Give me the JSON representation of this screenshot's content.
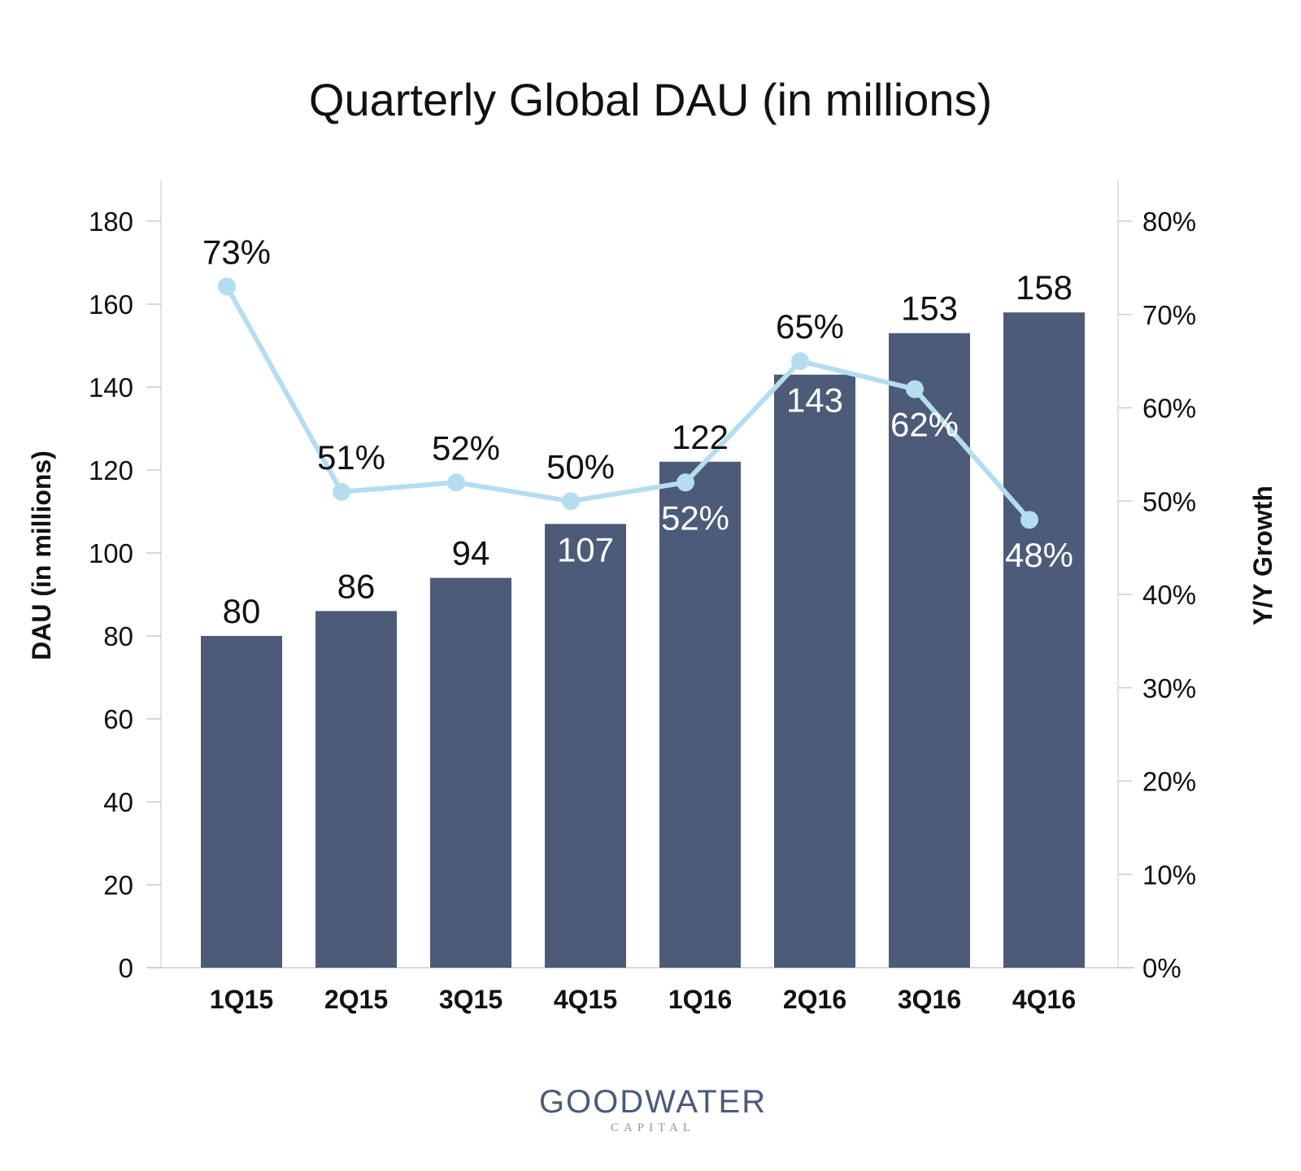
{
  "chart_data": {
    "type": "bar",
    "title": "Quarterly Global DAU (in millions)",
    "categories": [
      "1Q15",
      "2Q15",
      "3Q15",
      "4Q15",
      "1Q16",
      "2Q16",
      "3Q16",
      "4Q16"
    ],
    "series": [
      {
        "values": [
          80,
          86,
          94,
          107,
          122,
          143,
          153,
          158
        ],
        "color": "#4c5b78",
        "axis": "left",
        "labels": [
          "80",
          "86",
          "94",
          "107",
          "122",
          "143",
          "153",
          "158"
        ]
      },
      {
        "type": "line",
        "values": [
          73,
          51,
          52,
          50,
          52,
          65,
          62,
          48
        ],
        "color": "#b4ddf0",
        "axis": "right",
        "labels": [
          "73%",
          "51%",
          "52%",
          "50%",
          "52%",
          "65%",
          "62%",
          "48%"
        ]
      }
    ],
    "ylabel": "DAU (in millions)",
    "ylabel_right": "Y/Y Growth",
    "ylim": [
      0,
      180
    ],
    "ylim_right": [
      0,
      80
    ],
    "yticks": [
      "0",
      "20",
      "40",
      "60",
      "80",
      "100",
      "120",
      "140",
      "160",
      "180"
    ],
    "yticks_right": [
      "0%",
      "10%",
      "20%",
      "30%",
      "40%",
      "50%",
      "60%",
      "70%",
      "80%"
    ],
    "grid": false
  },
  "logo": {
    "name": "GOODWATER",
    "sub": "CAPITAL",
    "color": "#4a5a7a"
  }
}
